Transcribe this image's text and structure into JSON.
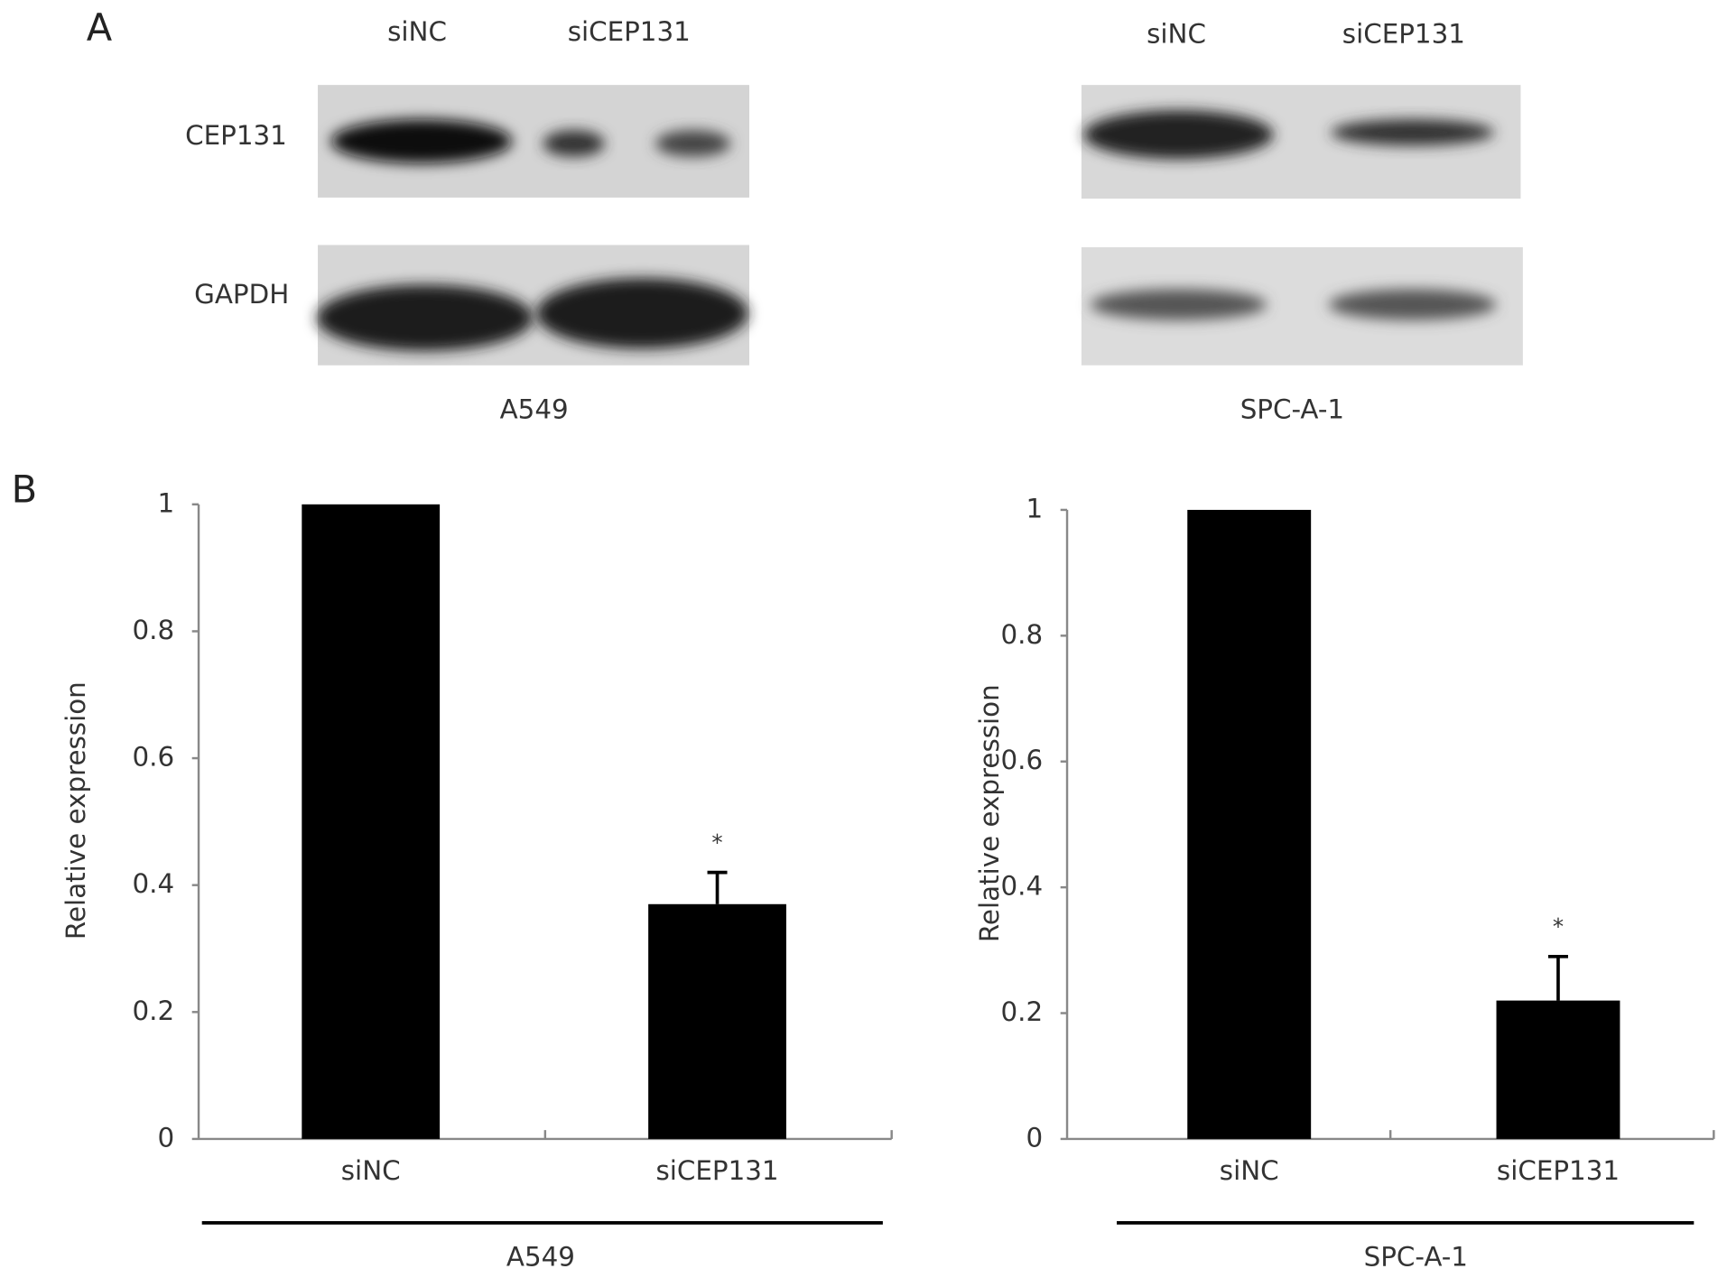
{
  "panel_labels": [
    "A",
    "B"
  ],
  "blots": [
    {
      "lanes": [
        "siNC",
        "siCEP131"
      ],
      "proteins": [
        "CEP131",
        "GAPDH"
      ],
      "cell_line": "A549"
    },
    {
      "lanes": [
        "siNC",
        "siCEP131"
      ],
      "cell_line": "SPC-A-1"
    }
  ],
  "chart_data": [
    {
      "type": "bar",
      "y_label": "Relative expression",
      "group_label": "A549",
      "categories": [
        "siNC",
        "siCEP131"
      ],
      "values": [
        1,
        0.37
      ],
      "errors": [
        null,
        0.05
      ],
      "significance": [
        null,
        "*"
      ],
      "color": "#000000",
      "ylim": [
        0,
        1
      ],
      "yticks": [
        0,
        0.2,
        0.4,
        0.6,
        0.8,
        1
      ]
    },
    {
      "type": "bar",
      "y_label": "Relative expression",
      "group_label": "SPC-A-1",
      "categories": [
        "siNC",
        "siCEP131"
      ],
      "values": [
        1,
        0.22
      ],
      "errors": [
        null,
        0.07
      ],
      "significance": [
        null,
        "*"
      ],
      "color": "#000000",
      "ylim": [
        0,
        1
      ],
      "yticks": [
        0,
        0.2,
        0.4,
        0.6,
        0.8,
        1
      ]
    }
  ]
}
